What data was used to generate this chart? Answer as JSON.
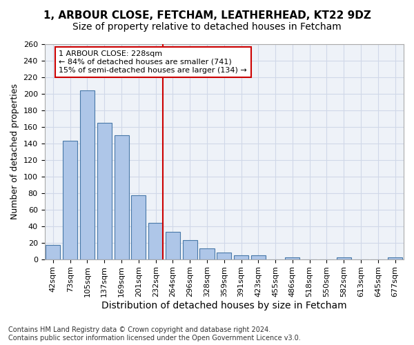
{
  "title1": "1, ARBOUR CLOSE, FETCHAM, LEATHERHEAD, KT22 9DZ",
  "title2": "Size of property relative to detached houses in Fetcham",
  "xlabel": "Distribution of detached houses by size in Fetcham",
  "ylabel": "Number of detached properties",
  "bin_labels": [
    "42sqm",
    "73sqm",
    "105sqm",
    "137sqm",
    "169sqm",
    "201sqm",
    "232sqm",
    "264sqm",
    "296sqm",
    "328sqm",
    "359sqm",
    "391sqm",
    "423sqm",
    "455sqm",
    "486sqm",
    "518sqm",
    "550sqm",
    "582sqm",
    "613sqm",
    "645sqm",
    "677sqm"
  ],
  "bar_values": [
    17,
    143,
    204,
    165,
    150,
    77,
    44,
    33,
    23,
    13,
    8,
    5,
    5,
    0,
    2,
    0,
    0,
    2,
    0,
    0,
    2
  ],
  "bar_color": "#aec6e8",
  "bar_edge_color": "#4878a8",
  "vline_x_index": 6,
  "vline_color": "#cc0000",
  "annotation_line1": "1 ARBOUR CLOSE: 228sqm",
  "annotation_line2": "← 84% of detached houses are smaller (741)",
  "annotation_line3": "15% of semi-detached houses are larger (134) →",
  "annotation_box_color": "#ffffff",
  "annotation_box_edge": "#cc0000",
  "grid_color": "#d0d8e8",
  "bg_color": "#eef2f8",
  "ylim": [
    0,
    260
  ],
  "yticks": [
    0,
    20,
    40,
    60,
    80,
    100,
    120,
    140,
    160,
    180,
    200,
    220,
    240,
    260
  ],
  "footnote": "Contains HM Land Registry data © Crown copyright and database right 2024.\nContains public sector information licensed under the Open Government Licence v3.0.",
  "title1_fontsize": 11,
  "title2_fontsize": 10,
  "xlabel_fontsize": 10,
  "ylabel_fontsize": 9,
  "tick_fontsize": 8,
  "annotation_fontsize": 8,
  "footnote_fontsize": 7
}
